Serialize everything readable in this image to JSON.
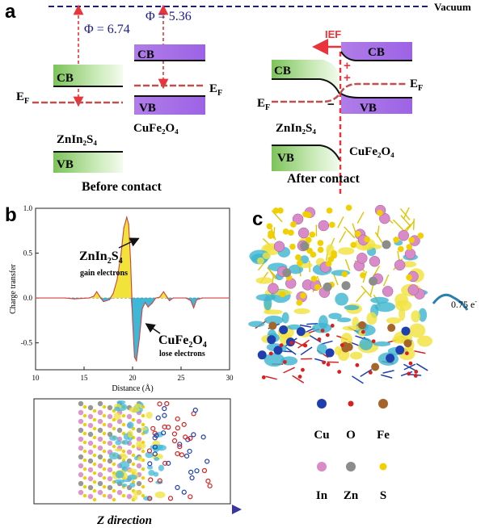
{
  "panels": {
    "a": {
      "label": "a",
      "vacuum_label": "Vacuum",
      "phi_left": "Φ = 6.74",
      "phi_right": "Φ = 5.36",
      "before": {
        "cb": "CB",
        "vb": "VB",
        "ef_left": "E",
        "ef_left_sub": "F",
        "cb_right": "CB",
        "vb_right": "VB",
        "ef_right": "E",
        "ef_right_sub": "F",
        "material_left": "ZnIn₂S₄",
        "material_right": "CuFe₂O₄",
        "caption": "Before contact"
      },
      "after": {
        "ief": "IEF",
        "cb_left": "CB",
        "cb_right": "CB",
        "vb_right": "VB",
        "vb_left": "VB",
        "ef_left": "E",
        "ef_left_sub": "F",
        "ef_right": "E",
        "ef_right_sub": "F",
        "plus": "+",
        "minus": "−",
        "material_left": "ZnIn₂S₄",
        "material_right": "CuFe₂O₄",
        "caption": "After contact"
      },
      "colors": {
        "green": "#8fcf6a",
        "purple": "#a873e8",
        "ef": "#c0504d",
        "ief": "#e8343a",
        "vacuum": "#1a1a8c"
      }
    },
    "b": {
      "label": "b",
      "annot_top": "ZnIn",
      "annot_top_s1": "2",
      "annot_top_mid": "S",
      "annot_top_s2": "4",
      "annot_top_sub": "gain electrons",
      "annot_bot": "CuFe",
      "annot_bot_s1": "2",
      "annot_bot_mid": "O",
      "annot_bot_s2": "4",
      "annot_bot_sub": "lose electrons",
      "z_direction": "Z direction"
    },
    "c": {
      "label": "c",
      "charge": "0.75 e",
      "charge_sup": "-",
      "legend": [
        {
          "name": "Cu",
          "color": "#1f3fae"
        },
        {
          "name": "O",
          "color": "#d82020"
        },
        {
          "name": "Fe",
          "color": "#a5652a"
        },
        {
          "name": "In",
          "color": "#d98ac8"
        },
        {
          "name": "Zn",
          "color": "#8c8c8c"
        },
        {
          "name": "S",
          "color": "#f0d000"
        }
      ]
    }
  },
  "chart_data": {
    "type": "line",
    "title": "",
    "xlabel": "Distance (Å)",
    "ylabel": "Charge transfer",
    "xlim": [
      10,
      30
    ],
    "ylim": [
      -0.8,
      1.0
    ],
    "xticks": [
      "10",
      "15",
      "20",
      "25",
      "30"
    ],
    "yticks": [
      "-0.5",
      "0.0",
      "0.5",
      "1.0"
    ],
    "series": [
      {
        "x": [
          10,
          13,
          14,
          15.5,
          16.0,
          16.3,
          16.6,
          17.0,
          17.6,
          18.0,
          18.4,
          18.8,
          19.1,
          19.4,
          19.6,
          19.8,
          20.0,
          20.2,
          20.4,
          20.7,
          21.0,
          21.3,
          21.6,
          22.0,
          22.4,
          22.8,
          23.2,
          23.5,
          23.8,
          24.2,
          25.5,
          26.0,
          26.3,
          26.6,
          27.2,
          30
        ],
        "y": [
          0,
          0,
          -0.01,
          0.0,
          0.02,
          0.07,
          0.02,
          -0.04,
          -0.02,
          0.05,
          0.2,
          0.48,
          0.78,
          0.9,
          0.82,
          0.4,
          -0.25,
          -0.66,
          -0.7,
          -0.45,
          -0.12,
          -0.05,
          -0.1,
          -0.06,
          0.0,
          0.01,
          0.07,
          0.02,
          -0.03,
          0.0,
          0.0,
          -0.03,
          -0.11,
          -0.02,
          0.0,
          0
        ]
      }
    ]
  }
}
